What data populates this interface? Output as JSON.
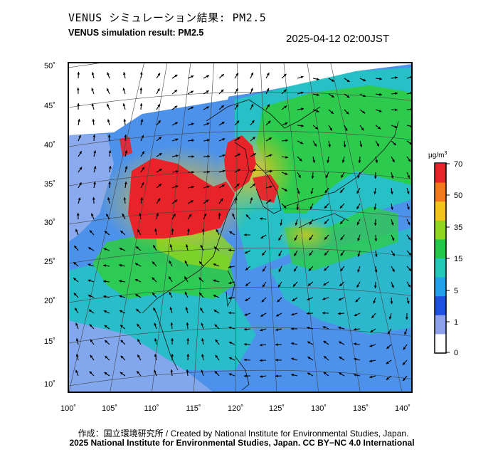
{
  "title_jp": "VENUS シミュレーション結果: PM2.5",
  "title_en": "VENUS simulation result: PM2.5",
  "timestamp": "2025-04-12 02:00JST",
  "colorbar": {
    "unit_main": "μg/m",
    "unit_sup": "3",
    "ticks": [
      "70",
      "50",
      "35",
      "15",
      "5",
      "1",
      "0"
    ],
    "colors": [
      "#e8242a",
      "#f07a1c",
      "#f2c418",
      "#8fd61c",
      "#22c84a",
      "#22c8b8",
      "#22a0e8",
      "#2050e0",
      "#8ea0ec",
      "#ffffff"
    ]
  },
  "axes": {
    "lat_labels": [
      "50˚",
      "45˚",
      "40˚",
      "35˚",
      "30˚",
      "25˚",
      "20˚",
      "15˚",
      "10˚"
    ],
    "lon_labels": [
      "100˚",
      "105˚",
      "110˚",
      "115˚",
      "120˚",
      "125˚",
      "130˚",
      "135˚",
      "140˚"
    ]
  },
  "credits": {
    "line1": "作成：国立環境研究所 / Created by National Institute for Environmental Studies, Japan.",
    "line2": "2025 National Institute for Environmental Studies, Japan. CC BY−NC 4.0 International"
  }
}
